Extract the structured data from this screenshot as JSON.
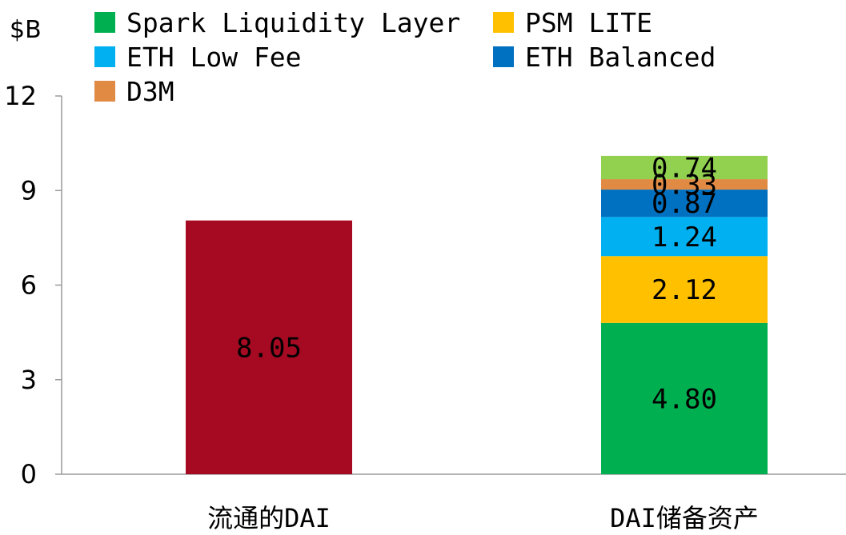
{
  "chart_data": {
    "type": "bar",
    "stacked": true,
    "ylabel": "$B",
    "ylim": [
      0,
      12
    ],
    "yticks": [
      "0",
      "3",
      "6",
      "9",
      "12"
    ],
    "grid": false,
    "legend_position": "top",
    "categories": [
      "流通的DAI",
      "DAI储备资产"
    ],
    "series": [
      {
        "name": "",
        "color": "#A50A22",
        "values": [
          8.05,
          null
        ],
        "labels": [
          "8.05",
          ""
        ],
        "in_legend": false
      },
      {
        "name": "Spark Liquidity Layer",
        "color": "#00B050",
        "values": [
          null,
          4.8
        ],
        "labels": [
          "",
          "4.80"
        ],
        "in_legend": true
      },
      {
        "name": "PSM LITE",
        "color": "#FFC000",
        "values": [
          null,
          2.12
        ],
        "labels": [
          "",
          "2.12"
        ],
        "in_legend": true
      },
      {
        "name": "ETH Low Fee",
        "color": "#00B0F0",
        "values": [
          null,
          1.24
        ],
        "labels": [
          "",
          "1.24"
        ],
        "in_legend": true
      },
      {
        "name": "ETH Balanced",
        "color": "#0070C0",
        "values": [
          null,
          0.87
        ],
        "labels": [
          "",
          "0.87"
        ],
        "in_legend": true
      },
      {
        "name": "D3M",
        "color": "#E08A44",
        "values": [
          null,
          0.33
        ],
        "labels": [
          "",
          "0.33"
        ],
        "in_legend": true
      },
      {
        "name": "",
        "color": "#92D050",
        "values": [
          null,
          0.74
        ],
        "labels": [
          "",
          "0.74"
        ],
        "in_legend": false
      }
    ]
  }
}
